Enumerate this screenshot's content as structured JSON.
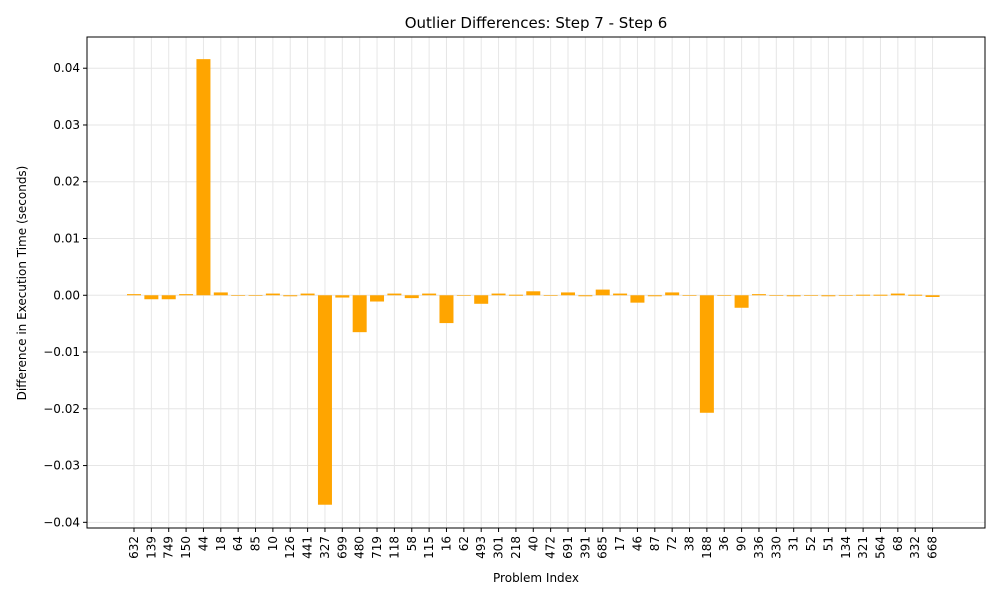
{
  "chart_data": {
    "type": "bar",
    "title": "Outlier Differences: Step 7 - Step 6",
    "xlabel": "Problem Index",
    "ylabel": "Difference in Execution Time (seconds)",
    "ylim": [
      -0.041,
      0.0455
    ],
    "y_ticks": [
      -0.04,
      -0.03,
      -0.02,
      -0.01,
      0.0,
      0.01,
      0.02,
      0.03,
      0.04
    ],
    "y_tick_labels": [
      "−0.04",
      "−0.03",
      "−0.02",
      "−0.01",
      "0.00",
      "0.01",
      "0.02",
      "0.03",
      "0.04"
    ],
    "grid": true,
    "bar_color": "#ffa500",
    "grid_color": "#e6e6e6",
    "categories": [
      "632",
      "139",
      "749",
      "150",
      "44",
      "18",
      "64",
      "85",
      "10",
      "126",
      "441",
      "327",
      "699",
      "480",
      "719",
      "118",
      "58",
      "115",
      "16",
      "62",
      "493",
      "301",
      "218",
      "40",
      "472",
      "691",
      "391",
      "685",
      "17",
      "46",
      "87",
      "72",
      "38",
      "188",
      "36",
      "90",
      "336",
      "330",
      "31",
      "52",
      "51",
      "134",
      "321",
      "564",
      "68",
      "332",
      "668"
    ],
    "values": [
      0.0002,
      -0.0007,
      -0.0007,
      0.0002,
      0.0416,
      0.0005,
      0.0,
      0.0,
      0.0003,
      -0.0001,
      0.0003,
      -0.0369,
      -0.0004,
      -0.0065,
      -0.0011,
      0.0003,
      -0.0005,
      0.0003,
      -0.0049,
      0.0,
      -0.0015,
      0.0003,
      0.0001,
      0.0007,
      0.0,
      0.0005,
      -0.0001,
      0.001,
      0.0003,
      -0.0013,
      -0.0001,
      0.0005,
      0.0,
      -0.0207,
      0.0,
      -0.0022,
      0.0002,
      0.0,
      -0.0001,
      0.0,
      -0.0001,
      0.0,
      0.0001,
      0.0001,
      0.0003,
      0.0001,
      -0.0003
    ]
  }
}
